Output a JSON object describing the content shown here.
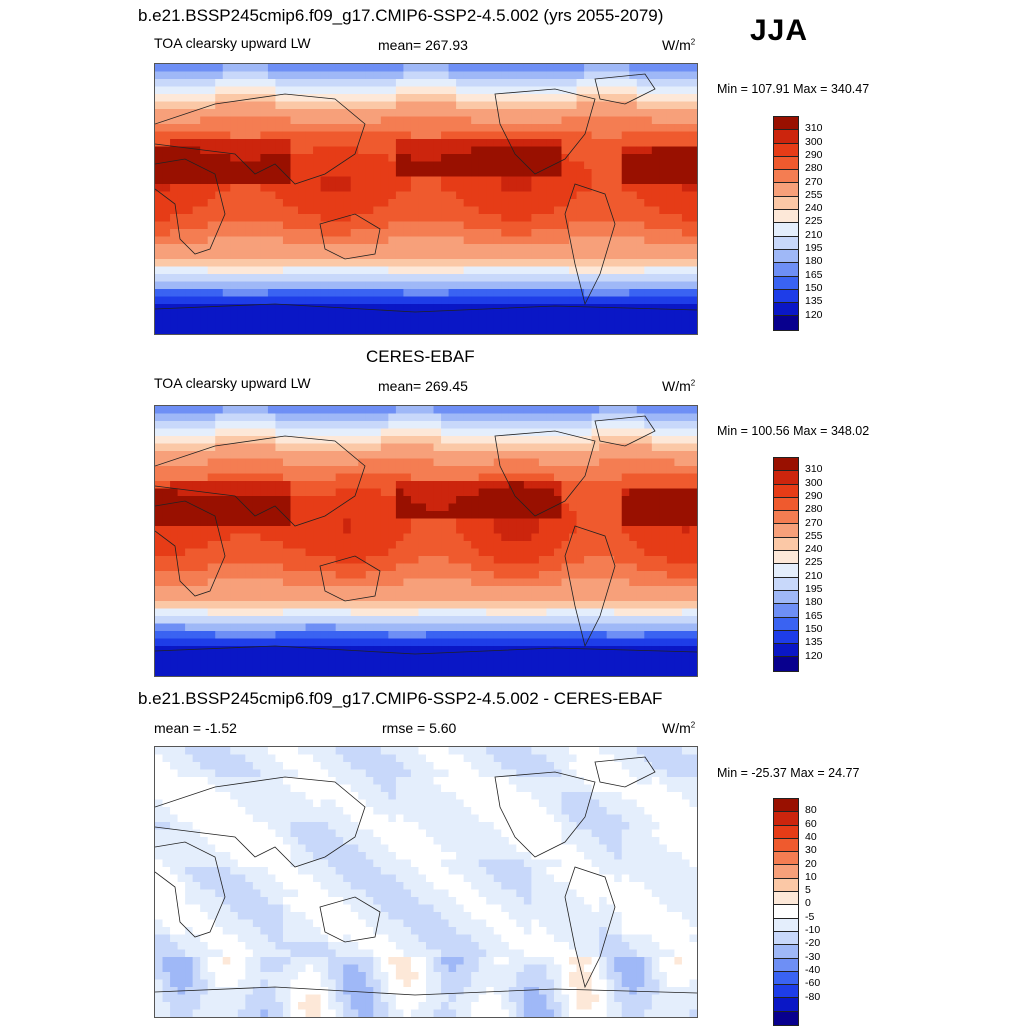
{
  "season": "JJA",
  "colors": {
    "abs": [
      "#08008e",
      "#0a17c6",
      "#1e3de8",
      "#3a63f2",
      "#6e8ff5",
      "#9fb8f7",
      "#c8d8fa",
      "#e4eefc",
      "#fde8d8",
      "#fbc8a6",
      "#f7a07a",
      "#f47d52",
      "#ef5a2e",
      "#e63c17",
      "#cc250d",
      "#991000"
    ],
    "diff": [
      "#08008e",
      "#0a17c6",
      "#1e3de8",
      "#3a63f2",
      "#6e8ff5",
      "#9fb8f7",
      "#c8d8fa",
      "#e4eefc",
      "#ffffff",
      "#fde8d8",
      "#fbc8a6",
      "#f7a07a",
      "#f47d52",
      "#ef5a2e",
      "#e63c17",
      "#cc250d",
      "#991000"
    ]
  },
  "panels": [
    {
      "title": "b.e21.BSSP245cmip6.f09_g17.CMIP6-SSP2-4.5.002 (yrs 2055-2079)",
      "left_label": "TOA clearsky upward LW",
      "center_label": "mean= 267.93",
      "units": "W/m",
      "units_sup": "2",
      "minmax": "Min = 107.91 Max = 340.47",
      "colorbar_labels": [
        "310",
        "300",
        "290",
        "280",
        "270",
        "255",
        "240",
        "225",
        "210",
        "195",
        "180",
        "165",
        "150",
        "135",
        "120"
      ]
    },
    {
      "title": "CERES-EBAF",
      "left_label": "TOA clearsky upward LW",
      "center_label": "mean= 269.45",
      "units": "W/m",
      "units_sup": "2",
      "minmax": "Min = 100.56 Max = 348.02",
      "colorbar_labels": [
        "310",
        "300",
        "290",
        "280",
        "270",
        "255",
        "240",
        "225",
        "210",
        "195",
        "180",
        "165",
        "150",
        "135",
        "120"
      ]
    },
    {
      "title": "b.e21.BSSP245cmip6.f09_g17.CMIP6-SSP2-4.5.002 - CERES-EBAF",
      "left_label": "mean =  -1.52",
      "center_label": "rmse =   5.60",
      "units": "W/m",
      "units_sup": "2",
      "minmax": "Min = -25.37 Max =  24.77",
      "colorbar_labels": [
        "80",
        "60",
        "40",
        "30",
        "20",
        "10",
        "5",
        "0",
        "-5",
        "-10",
        "-20",
        "-30",
        "-40",
        "-60",
        "-80"
      ]
    }
  ]
}
